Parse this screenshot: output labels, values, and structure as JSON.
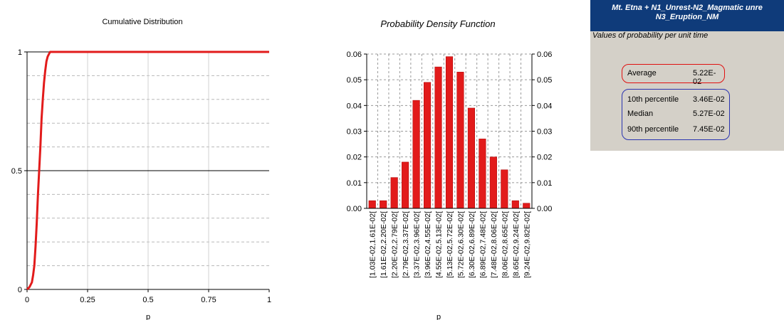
{
  "cdf": {
    "title": "Cumulative Distribution",
    "xlabel": "p"
  },
  "pdf": {
    "title": "Probability Density Function",
    "xlabel": "p"
  },
  "panel": {
    "header_line1": "Mt. Etna + N1_Unrest-N2_Magmatic unre",
    "header_line2": "N3_Eruption_NM",
    "subtitle": "Values of probability per unit time",
    "average": {
      "label": "Average",
      "value": "5.22E-02"
    },
    "percentiles": [
      {
        "label": "10th percentile",
        "value": "3.46E-02"
      },
      {
        "label": "Median",
        "value": "5.27E-02"
      },
      {
        "label": "90th percentile",
        "value": "7.45E-02"
      }
    ]
  },
  "colors": {
    "series": "#e21b1b",
    "panel_header": "#0f3b7a",
    "panel_bg": "#d4d0c8",
    "average_box": "#e01010",
    "percentile_box": "#2a34b0"
  },
  "chart_data": [
    {
      "type": "line",
      "title": "Cumulative Distribution",
      "xlabel": "p",
      "ylabel": "",
      "xlim": [
        0,
        1
      ],
      "ylim": [
        0,
        1
      ],
      "xticks": [
        "0",
        "0.25",
        "0.5",
        "0.75",
        "1"
      ],
      "yticks": [
        "0",
        "0.5",
        "1"
      ],
      "grid": true,
      "series": [
        {
          "x": [
            0,
            0.01,
            0.02,
            0.025,
            0.03,
            0.035,
            0.04,
            0.045,
            0.05,
            0.055,
            0.06,
            0.065,
            0.07,
            0.075,
            0.08,
            0.085,
            0.09,
            0.095,
            1
          ],
          "y": [
            0,
            0.01,
            0.03,
            0.06,
            0.1,
            0.18,
            0.28,
            0.4,
            0.5,
            0.6,
            0.72,
            0.8,
            0.87,
            0.92,
            0.96,
            0.98,
            0.99,
            1,
            1
          ]
        }
      ]
    },
    {
      "type": "bar",
      "title": "Probability Density Function",
      "xlabel": "p",
      "ylabel": "",
      "ylim": [
        0,
        0.06
      ],
      "yticks": [
        "0.00",
        "0.01",
        "0.02",
        "0.03",
        "0.04",
        "0.05",
        "0.06"
      ],
      "grid": true,
      "categories": [
        "[1.03E-02,1.61E-02[",
        "[1.61E-02,2.20E-02[",
        "[2.20E-02,2.79E-02[",
        "[2.79E-02,3.37E-02[",
        "[3.37E-02,3.96E-02[",
        "[3.96E-02,4.55E-02[",
        "[4.55E-02,5.13E-02[",
        "[5.13E-02,5.72E-02[",
        "[5.72E-02,6.30E-02[",
        "[6.30E-02,6.89E-02[",
        "[6.89E-02,7.48E-02[",
        "[7.48E-02,8.06E-02[",
        "[8.06E-02,8.65E-02[",
        "[8.65E-02,9.24E-02[",
        "[9.24E-02,9.82E-02["
      ],
      "values": [
        0.003,
        0.003,
        0.012,
        0.018,
        0.042,
        0.049,
        0.055,
        0.059,
        0.053,
        0.039,
        0.027,
        0.02,
        0.015,
        0.003,
        0.002
      ]
    }
  ]
}
